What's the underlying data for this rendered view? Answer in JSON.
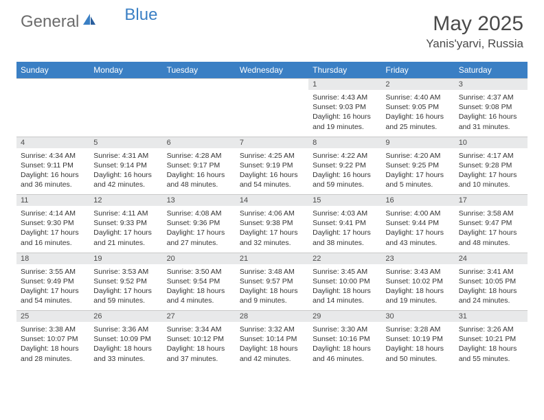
{
  "brand": {
    "general": "General",
    "blue": "Blue"
  },
  "title": "May 2025",
  "location": "Yanis'yarvi, Russia",
  "header_color": "#3a7fc4",
  "daynum_bg": "#e8e9ea",
  "text_color": "#333333",
  "days": [
    "Sunday",
    "Monday",
    "Tuesday",
    "Wednesday",
    "Thursday",
    "Friday",
    "Saturday"
  ],
  "weeks": [
    [
      null,
      null,
      null,
      null,
      {
        "n": "1",
        "sr": "4:43 AM",
        "ss": "9:03 PM",
        "dl": "16 hours and 19 minutes."
      },
      {
        "n": "2",
        "sr": "4:40 AM",
        "ss": "9:05 PM",
        "dl": "16 hours and 25 minutes."
      },
      {
        "n": "3",
        "sr": "4:37 AM",
        "ss": "9:08 PM",
        "dl": "16 hours and 31 minutes."
      }
    ],
    [
      {
        "n": "4",
        "sr": "4:34 AM",
        "ss": "9:11 PM",
        "dl": "16 hours and 36 minutes."
      },
      {
        "n": "5",
        "sr": "4:31 AM",
        "ss": "9:14 PM",
        "dl": "16 hours and 42 minutes."
      },
      {
        "n": "6",
        "sr": "4:28 AM",
        "ss": "9:17 PM",
        "dl": "16 hours and 48 minutes."
      },
      {
        "n": "7",
        "sr": "4:25 AM",
        "ss": "9:19 PM",
        "dl": "16 hours and 54 minutes."
      },
      {
        "n": "8",
        "sr": "4:22 AM",
        "ss": "9:22 PM",
        "dl": "16 hours and 59 minutes."
      },
      {
        "n": "9",
        "sr": "4:20 AM",
        "ss": "9:25 PM",
        "dl": "17 hours and 5 minutes."
      },
      {
        "n": "10",
        "sr": "4:17 AM",
        "ss": "9:28 PM",
        "dl": "17 hours and 10 minutes."
      }
    ],
    [
      {
        "n": "11",
        "sr": "4:14 AM",
        "ss": "9:30 PM",
        "dl": "17 hours and 16 minutes."
      },
      {
        "n": "12",
        "sr": "4:11 AM",
        "ss": "9:33 PM",
        "dl": "17 hours and 21 minutes."
      },
      {
        "n": "13",
        "sr": "4:08 AM",
        "ss": "9:36 PM",
        "dl": "17 hours and 27 minutes."
      },
      {
        "n": "14",
        "sr": "4:06 AM",
        "ss": "9:38 PM",
        "dl": "17 hours and 32 minutes."
      },
      {
        "n": "15",
        "sr": "4:03 AM",
        "ss": "9:41 PM",
        "dl": "17 hours and 38 minutes."
      },
      {
        "n": "16",
        "sr": "4:00 AM",
        "ss": "9:44 PM",
        "dl": "17 hours and 43 minutes."
      },
      {
        "n": "17",
        "sr": "3:58 AM",
        "ss": "9:47 PM",
        "dl": "17 hours and 48 minutes."
      }
    ],
    [
      {
        "n": "18",
        "sr": "3:55 AM",
        "ss": "9:49 PM",
        "dl": "17 hours and 54 minutes."
      },
      {
        "n": "19",
        "sr": "3:53 AM",
        "ss": "9:52 PM",
        "dl": "17 hours and 59 minutes."
      },
      {
        "n": "20",
        "sr": "3:50 AM",
        "ss": "9:54 PM",
        "dl": "18 hours and 4 minutes."
      },
      {
        "n": "21",
        "sr": "3:48 AM",
        "ss": "9:57 PM",
        "dl": "18 hours and 9 minutes."
      },
      {
        "n": "22",
        "sr": "3:45 AM",
        "ss": "10:00 PM",
        "dl": "18 hours and 14 minutes."
      },
      {
        "n": "23",
        "sr": "3:43 AM",
        "ss": "10:02 PM",
        "dl": "18 hours and 19 minutes."
      },
      {
        "n": "24",
        "sr": "3:41 AM",
        "ss": "10:05 PM",
        "dl": "18 hours and 24 minutes."
      }
    ],
    [
      {
        "n": "25",
        "sr": "3:38 AM",
        "ss": "10:07 PM",
        "dl": "18 hours and 28 minutes."
      },
      {
        "n": "26",
        "sr": "3:36 AM",
        "ss": "10:09 PM",
        "dl": "18 hours and 33 minutes."
      },
      {
        "n": "27",
        "sr": "3:34 AM",
        "ss": "10:12 PM",
        "dl": "18 hours and 37 minutes."
      },
      {
        "n": "28",
        "sr": "3:32 AM",
        "ss": "10:14 PM",
        "dl": "18 hours and 42 minutes."
      },
      {
        "n": "29",
        "sr": "3:30 AM",
        "ss": "10:16 PM",
        "dl": "18 hours and 46 minutes."
      },
      {
        "n": "30",
        "sr": "3:28 AM",
        "ss": "10:19 PM",
        "dl": "18 hours and 50 minutes."
      },
      {
        "n": "31",
        "sr": "3:26 AM",
        "ss": "10:21 PM",
        "dl": "18 hours and 55 minutes."
      }
    ]
  ],
  "labels": {
    "sunrise": "Sunrise:",
    "sunset": "Sunset:",
    "daylight": "Daylight:"
  }
}
